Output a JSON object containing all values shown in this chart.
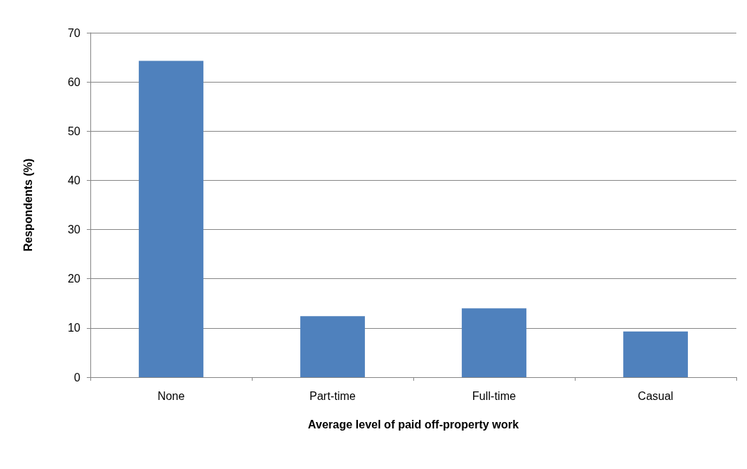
{
  "chart_data": {
    "type": "bar",
    "xlabel": "Average level of paid off-property work",
    "ylabel": "Respondents (%)",
    "categories": [
      "None",
      "Part-time",
      "Full-time",
      "Casual"
    ],
    "values": [
      64.3,
      12.4,
      14.0,
      9.3
    ],
    "color": "#4f81bd",
    "ylim": [
      0,
      70
    ],
    "yticks": [
      0,
      10,
      20,
      30,
      40,
      50,
      60,
      70
    ],
    "grid": "y"
  }
}
